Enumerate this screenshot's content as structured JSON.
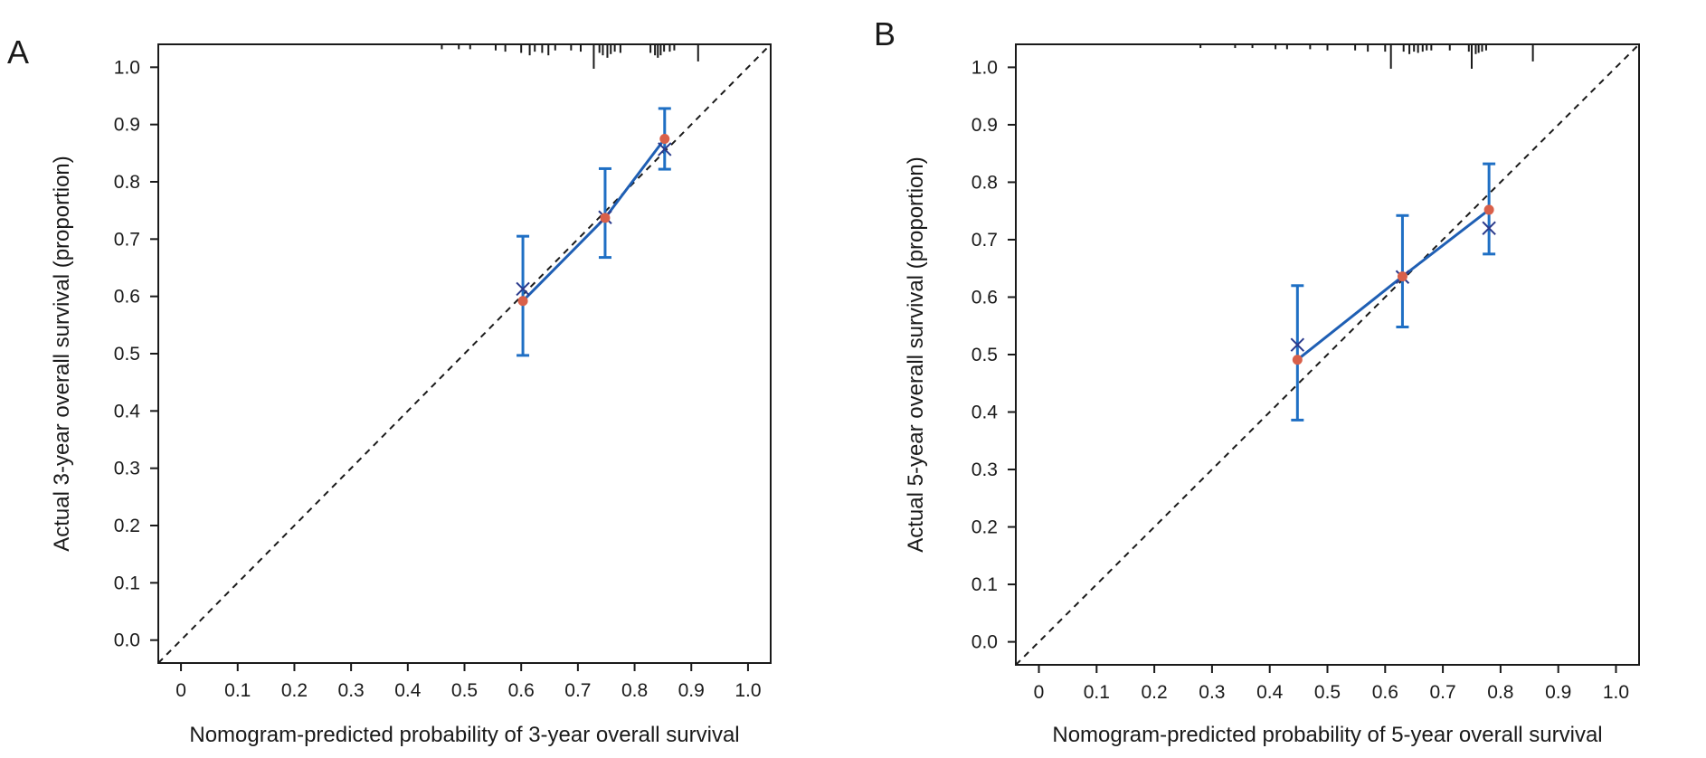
{
  "colors": {
    "line": "#1f5fb4",
    "errorbar": "#1f6fc4",
    "observed_point": "#d9604a",
    "corrected_marker": "#2a3a8c",
    "reference_line": "#1a1a1a",
    "axis": "#1a1a1a"
  },
  "chart_data": [
    {
      "type": "line",
      "panel_label": "A",
      "xlabel": "Nomogram-predicted probability of 3-year overall survival",
      "ylabel": "Actual 3-year overall survival (proportion)",
      "xlim": [
        -0.04,
        1.04
      ],
      "ylim": [
        -0.04,
        1.04
      ],
      "x_ticks": [
        "0",
        "0.1",
        "0.2",
        "0.3",
        "0.4",
        "0.5",
        "0.6",
        "0.7",
        "0.8",
        "0.9",
        "1.0"
      ],
      "y_ticks": [
        "0.0",
        "0.1",
        "0.2",
        "0.3",
        "0.4",
        "0.5",
        "0.6",
        "0.7",
        "0.8",
        "0.9",
        "1.0"
      ],
      "reference_line": "ideal diagonal (dashed)",
      "grid": false,
      "series": [
        {
          "x": [
            0.603,
            0.748,
            0.853
          ],
          "y": [
            0.592,
            0.737,
            0.875
          ],
          "ci_low": [
            0.497,
            0.668,
            0.822
          ],
          "ci_high": [
            0.705,
            0.823,
            0.928
          ]
        },
        {
          "x": [
            0.603,
            0.748,
            0.853
          ],
          "y": [
            0.613,
            0.738,
            0.857
          ]
        }
      ],
      "rug": [
        {
          "x": 0.46,
          "h": 0.2
        },
        {
          "x": 0.49,
          "h": 0.2
        },
        {
          "x": 0.51,
          "h": 0.2
        },
        {
          "x": 0.555,
          "h": 0.25
        },
        {
          "x": 0.572,
          "h": 0.3
        },
        {
          "x": 0.6,
          "h": 0.35
        },
        {
          "x": 0.615,
          "h": 0.45
        },
        {
          "x": 0.624,
          "h": 0.3
        },
        {
          "x": 0.637,
          "h": 0.35
        },
        {
          "x": 0.648,
          "h": 0.45
        },
        {
          "x": 0.66,
          "h": 0.25
        },
        {
          "x": 0.688,
          "h": 0.25
        },
        {
          "x": 0.705,
          "h": 0.3
        },
        {
          "x": 0.728,
          "h": 1.0
        },
        {
          "x": 0.738,
          "h": 0.35
        },
        {
          "x": 0.744,
          "h": 0.45
        },
        {
          "x": 0.752,
          "h": 0.55
        },
        {
          "x": 0.758,
          "h": 0.4
        },
        {
          "x": 0.765,
          "h": 0.3
        },
        {
          "x": 0.775,
          "h": 0.35
        },
        {
          "x": 0.828,
          "h": 0.35
        },
        {
          "x": 0.836,
          "h": 0.45
        },
        {
          "x": 0.841,
          "h": 0.55
        },
        {
          "x": 0.846,
          "h": 0.45
        },
        {
          "x": 0.852,
          "h": 0.3
        },
        {
          "x": 0.862,
          "h": 0.3
        },
        {
          "x": 0.87,
          "h": 0.25
        },
        {
          "x": 0.912,
          "h": 0.7
        }
      ]
    },
    {
      "type": "line",
      "panel_label": "B",
      "xlabel": "Nomogram-predicted probability of 5-year overall survival",
      "ylabel": "Actual 5-year overall survival (proportion)",
      "xlim": [
        -0.04,
        1.04
      ],
      "ylim": [
        -0.04,
        1.04
      ],
      "x_ticks": [
        "0",
        "0.1",
        "0.2",
        "0.3",
        "0.4",
        "0.5",
        "0.6",
        "0.7",
        "0.8",
        "0.9",
        "1.0"
      ],
      "y_ticks": [
        "0.0",
        "0.1",
        "0.2",
        "0.3",
        "0.4",
        "0.5",
        "0.6",
        "0.7",
        "0.8",
        "0.9",
        "1.0"
      ],
      "reference_line": "ideal diagonal (dashed)",
      "grid": false,
      "series": [
        {
          "x": [
            0.448,
            0.63,
            0.78
          ],
          "y": [
            0.491,
            0.636,
            0.752
          ],
          "ci_low": [
            0.386,
            0.548,
            0.675
          ],
          "ci_high": [
            0.62,
            0.742,
            0.832
          ]
        },
        {
          "x": [
            0.448,
            0.63,
            0.78
          ],
          "y": [
            0.517,
            0.635,
            0.72
          ]
        }
      ],
      "rug": [
        {
          "x": 0.28,
          "h": 0.15
        },
        {
          "x": 0.34,
          "h": 0.15
        },
        {
          "x": 0.37,
          "h": 0.15
        },
        {
          "x": 0.41,
          "h": 0.2
        },
        {
          "x": 0.43,
          "h": 0.2
        },
        {
          "x": 0.47,
          "h": 0.2
        },
        {
          "x": 0.5,
          "h": 0.25
        },
        {
          "x": 0.548,
          "h": 0.25
        },
        {
          "x": 0.57,
          "h": 0.3
        },
        {
          "x": 0.6,
          "h": 0.3
        },
        {
          "x": 0.61,
          "h": 1.0
        },
        {
          "x": 0.632,
          "h": 0.3
        },
        {
          "x": 0.642,
          "h": 0.4
        },
        {
          "x": 0.65,
          "h": 0.3
        },
        {
          "x": 0.657,
          "h": 0.35
        },
        {
          "x": 0.665,
          "h": 0.3
        },
        {
          "x": 0.672,
          "h": 0.25
        },
        {
          "x": 0.68,
          "h": 0.25
        },
        {
          "x": 0.712,
          "h": 0.25
        },
        {
          "x": 0.745,
          "h": 0.3
        },
        {
          "x": 0.75,
          "h": 1.0
        },
        {
          "x": 0.757,
          "h": 0.4
        },
        {
          "x": 0.762,
          "h": 0.35
        },
        {
          "x": 0.768,
          "h": 0.3
        },
        {
          "x": 0.775,
          "h": 0.25
        },
        {
          "x": 0.856,
          "h": 0.7
        }
      ]
    }
  ]
}
